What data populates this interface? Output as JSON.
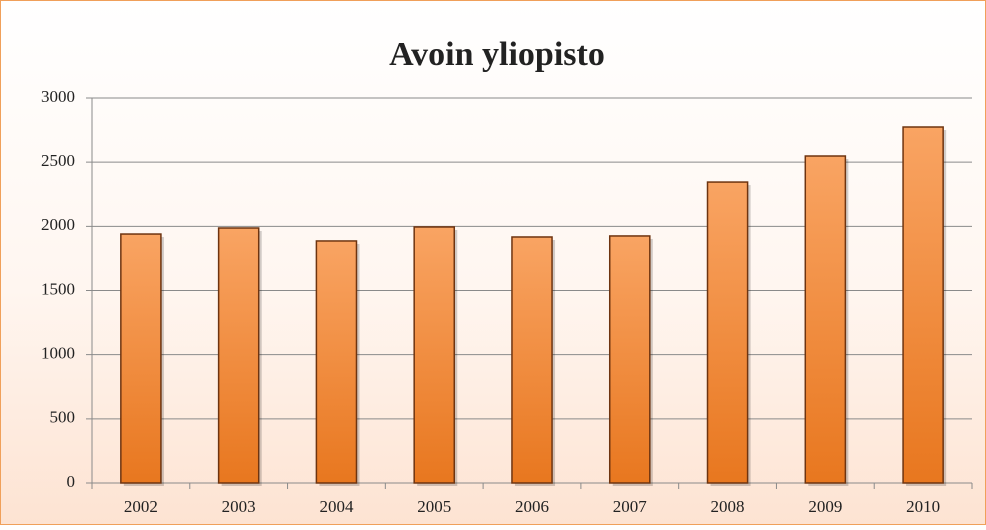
{
  "chart_data": {
    "type": "bar",
    "title": "Avoin yliopisto",
    "categories": [
      "2002",
      "2003",
      "2004",
      "2005",
      "2006",
      "2007",
      "2008",
      "2009",
      "2010"
    ],
    "values": [
      1940,
      1987,
      1886,
      1995,
      1917,
      1925,
      2345,
      2548,
      2774
    ],
    "color": "#e8771f",
    "ylim": [
      0,
      3000
    ],
    "yticks": [
      0,
      500,
      1000,
      1500,
      2000,
      2500,
      3000
    ],
    "grid": true
  }
}
